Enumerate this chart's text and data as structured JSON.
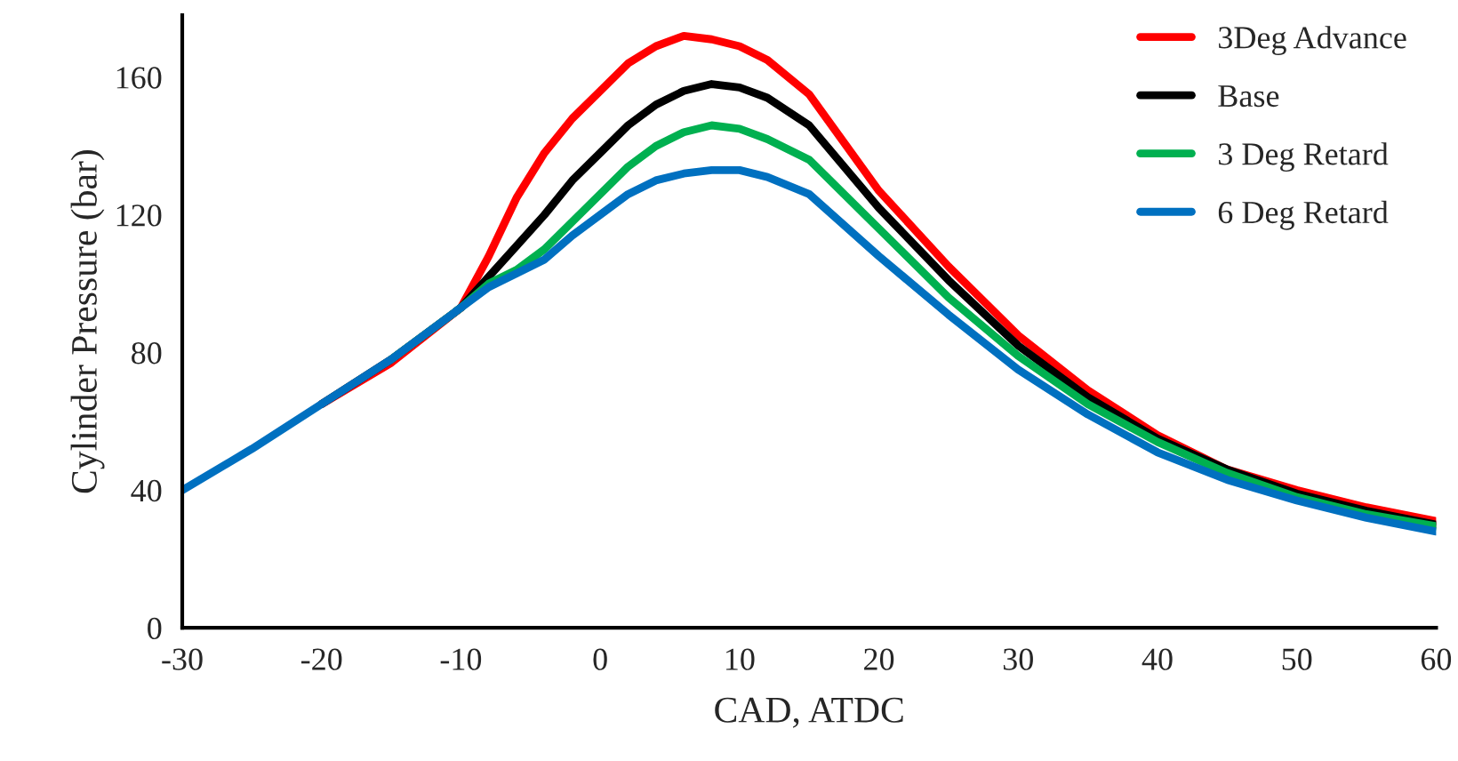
{
  "chart_data": {
    "type": "line",
    "xlabel": "CAD, ATDC",
    "ylabel": "Cylinder Pressure (bar)",
    "x": [
      -30,
      -25,
      -20,
      -15,
      -10,
      -8,
      -6,
      -4,
      -2,
      0,
      2,
      4,
      6,
      8,
      10,
      12,
      15,
      20,
      25,
      30,
      35,
      40,
      45,
      50,
      55,
      60
    ],
    "series": [
      {
        "name": "3Deg Advance",
        "color": "#ff0000",
        "values": [
          null,
          null,
          65,
          77,
          93,
          108,
          125,
          138,
          148,
          156,
          164,
          169,
          172,
          171,
          169,
          165,
          155,
          127,
          105,
          85,
          69,
          56,
          46,
          40,
          35,
          31
        ]
      },
      {
        "name": "Base",
        "color": "#000000",
        "values": [
          null,
          null,
          65,
          78,
          93,
          102,
          111,
          120,
          130,
          138,
          146,
          152,
          156,
          158,
          157,
          154,
          146,
          122,
          101,
          82,
          67,
          55,
          46,
          39,
          34,
          30
        ]
      },
      {
        "name": "3 Deg Retard",
        "color": "#00b050",
        "values": [
          null,
          null,
          null,
          78,
          93,
          100,
          104,
          110,
          118,
          126,
          134,
          140,
          144,
          146,
          145,
          142,
          136,
          116,
          96,
          79,
          65,
          54,
          45,
          38,
          33,
          29.5
        ]
      },
      {
        "name": "6 Deg Retard",
        "color": "#0070c0",
        "values": [
          40,
          52,
          65,
          78,
          93,
          99,
          103,
          107,
          114,
          120,
          126,
          130,
          132,
          133,
          133,
          131,
          126,
          108,
          91,
          75,
          62,
          51,
          43,
          37,
          32,
          28
        ]
      }
    ],
    "xlim": [
      -30,
      60
    ],
    "xticks": [
      -30,
      -20,
      -10,
      0,
      10,
      20,
      30,
      40,
      50,
      60
    ],
    "ylim": [
      0,
      178
    ],
    "yticks": [
      0,
      40,
      80,
      120,
      160
    ],
    "grid": false,
    "legend": "top right",
    "marker": "none",
    "line_style": "solid"
  }
}
